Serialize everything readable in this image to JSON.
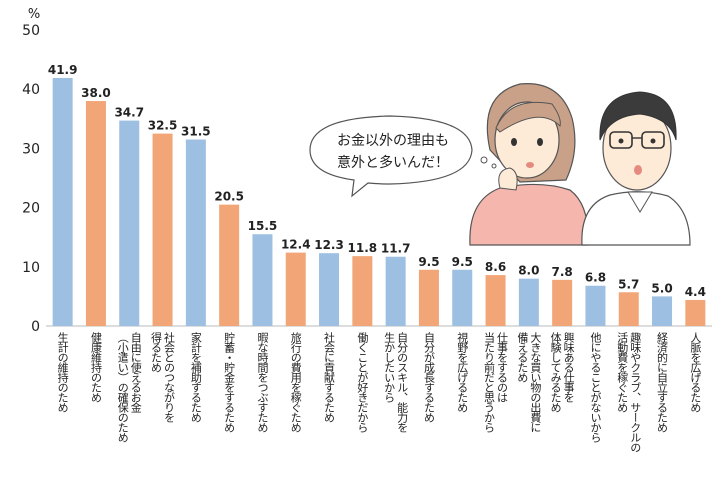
{
  "chart_data": {
    "type": "bar",
    "unit": "%",
    "ylim": [
      0,
      50
    ],
    "yticks": [
      0,
      10,
      20,
      30,
      40,
      50
    ],
    "grid": false,
    "categories": [
      "生計の維持のため",
      "健康維持のため",
      "自由に使えるお金\n（小遣い）の確保のため",
      "社会とのつながりを\n得るため",
      "家計を補助するため",
      "貯蓄・貯金をするため",
      "暇な時間をつぶすため",
      "旅行の費用を稼ぐため",
      "社会に貢献するため",
      "働くことが好きだから",
      "自分のスキル、能力を\n生かしたいから",
      "自分が成長するため",
      "視野を広げるため",
      "仕事をするのは\n当たり前だと思うから",
      "大きな買い物の出費に\n備えるため",
      "興味ある仕事を\n体験してみるため",
      "他にやることがないから",
      "趣味やクラブ、サークルの\n活動費を稼ぐため",
      "経済的に自立するため",
      "人脈を広げるため"
    ],
    "values": [
      41.9,
      38.0,
      34.7,
      32.5,
      31.5,
      20.5,
      15.5,
      12.4,
      12.3,
      11.8,
      11.7,
      9.5,
      9.5,
      8.6,
      8.0,
      7.8,
      6.8,
      5.7,
      5.0,
      4.4
    ],
    "value_labels": [
      "41.9",
      "38.0",
      "34.7",
      "32.5",
      "31.5",
      "20.5",
      "15.5",
      "12.4",
      "12.3",
      "11.8",
      "11.7",
      "9.5",
      "9.5",
      "8.6",
      "8.0",
      "7.8",
      "6.8",
      "5.7",
      "5.0",
      "4.4"
    ],
    "bar_colors": [
      "#9dbfe1",
      "#f2a678",
      "#9dbfe1",
      "#f2a678",
      "#9dbfe1",
      "#f2a678",
      "#9dbfe1",
      "#f2a678",
      "#9dbfe1",
      "#f2a678",
      "#9dbfe1",
      "#f2a678",
      "#9dbfe1",
      "#f2a678",
      "#9dbfe1",
      "#f2a678",
      "#9dbfe1",
      "#f2a678",
      "#9dbfe1",
      "#f2a678"
    ]
  },
  "illustration": {
    "speech_bubble_text": "お金以外の理由も\n意外と多いんだ！",
    "characters": [
      "woman-thinking",
      "man-with-glasses-surprised"
    ]
  }
}
